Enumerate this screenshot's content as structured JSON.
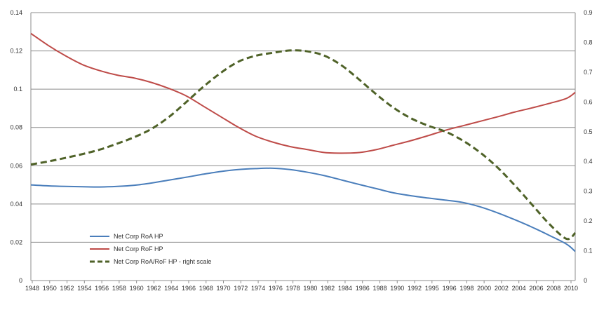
{
  "chart_data": {
    "type": "line",
    "title": "",
    "xlabel": "",
    "ylabel": "",
    "y2label": "",
    "grid": true,
    "legend_position": "bottom-left, inside plot",
    "xlim": [
      1948,
      2011
    ],
    "ylim": [
      0,
      0.14
    ],
    "y2lim": [
      0,
      0.9
    ],
    "x_ticks": [
      "1948",
      "1950",
      "1952",
      "1954",
      "1956",
      "1958",
      "1960",
      "1962",
      "1964",
      "1966",
      "1968",
      "1970",
      "1972",
      "1974",
      "1976",
      "1978",
      "1980",
      "1982",
      "1984",
      "1986",
      "1988",
      "1990",
      "1992",
      "1995",
      "1996",
      "1998",
      "2000",
      "2002",
      "2004",
      "2006",
      "2008",
      "2010"
    ],
    "y_ticks_left": [
      "0",
      "0.02",
      "0.04",
      "0.06",
      "0.08",
      "0.1",
      "0.12",
      "0.14"
    ],
    "y_ticks_right": [
      "0",
      "0.1",
      "0.2",
      "0.3",
      "0.4",
      "0.5",
      "0.6",
      "0.7",
      "0.8",
      "0.9"
    ],
    "series": [
      {
        "name": "Net Corp RoA HP",
        "axis": "left",
        "color": "#4a7ebb",
        "style": "solid",
        "points": [
          [
            1948,
            0.05
          ],
          [
            1950,
            0.0495
          ],
          [
            1952,
            0.0492
          ],
          [
            1954,
            0.049
          ],
          [
            1956,
            0.0489
          ],
          [
            1958,
            0.0492
          ],
          [
            1960,
            0.0498
          ],
          [
            1962,
            0.051
          ],
          [
            1964,
            0.0525
          ],
          [
            1966,
            0.054
          ],
          [
            1968,
            0.0556
          ],
          [
            1970,
            0.057
          ],
          [
            1972,
            0.058
          ],
          [
            1974,
            0.0585
          ],
          [
            1976,
            0.0587
          ],
          [
            1978,
            0.058
          ],
          [
            1980,
            0.0566
          ],
          [
            1982,
            0.0548
          ],
          [
            1984,
            0.0525
          ],
          [
            1986,
            0.0502
          ],
          [
            1988,
            0.048
          ],
          [
            1990,
            0.0458
          ],
          [
            1992,
            0.0443
          ],
          [
            1994,
            0.0431
          ],
          [
            1996,
            0.042
          ],
          [
            1998,
            0.0408
          ],
          [
            2000,
            0.0385
          ],
          [
            2002,
            0.0354
          ],
          [
            2004,
            0.0318
          ],
          [
            2006,
            0.0279
          ],
          [
            2008,
            0.0236
          ],
          [
            2010,
            0.019
          ],
          [
            2011,
            0.0152
          ]
        ]
      },
      {
        "name": "Net Corp RoF HP",
        "axis": "right",
        "color": "#be4b48",
        "style": "solid",
        "points": [
          [
            1948,
            0.83
          ],
          [
            1950,
            0.79
          ],
          [
            1952,
            0.755
          ],
          [
            1954,
            0.725
          ],
          [
            1956,
            0.705
          ],
          [
            1958,
            0.69
          ],
          [
            1960,
            0.68
          ],
          [
            1962,
            0.665
          ],
          [
            1964,
            0.645
          ],
          [
            1966,
            0.62
          ],
          [
            1968,
            0.585
          ],
          [
            1970,
            0.55
          ],
          [
            1972,
            0.515
          ],
          [
            1974,
            0.485
          ],
          [
            1976,
            0.465
          ],
          [
            1978,
            0.45
          ],
          [
            1980,
            0.44
          ],
          [
            1982,
            0.43
          ],
          [
            1984,
            0.428
          ],
          [
            1986,
            0.43
          ],
          [
            1988,
            0.44
          ],
          [
            1990,
            0.455
          ],
          [
            1992,
            0.47
          ],
          [
            1994,
            0.487
          ],
          [
            1996,
            0.505
          ],
          [
            1998,
            0.52
          ],
          [
            2000,
            0.535
          ],
          [
            2002,
            0.55
          ],
          [
            2004,
            0.566
          ],
          [
            2006,
            0.58
          ],
          [
            2008,
            0.595
          ],
          [
            2010,
            0.612
          ],
          [
            2011,
            0.632
          ]
        ]
      },
      {
        "name": "Net Corp RoA/RoF HP - right scale",
        "axis": "right",
        "color": "#4f6228",
        "style": "dashed",
        "points": [
          [
            1948,
            0.39
          ],
          [
            1950,
            0.4
          ],
          [
            1952,
            0.412
          ],
          [
            1954,
            0.425
          ],
          [
            1956,
            0.44
          ],
          [
            1958,
            0.46
          ],
          [
            1960,
            0.482
          ],
          [
            1962,
            0.51
          ],
          [
            1964,
            0.55
          ],
          [
            1966,
            0.6
          ],
          [
            1968,
            0.652
          ],
          [
            1970,
            0.698
          ],
          [
            1972,
            0.735
          ],
          [
            1974,
            0.755
          ],
          [
            1976,
            0.765
          ],
          [
            1978,
            0.773
          ],
          [
            1980,
            0.77
          ],
          [
            1982,
            0.755
          ],
          [
            1984,
            0.722
          ],
          [
            1986,
            0.675
          ],
          [
            1988,
            0.625
          ],
          [
            1990,
            0.58
          ],
          [
            1992,
            0.545
          ],
          [
            1994,
            0.52
          ],
          [
            1996,
            0.5
          ],
          [
            1998,
            0.47
          ],
          [
            2000,
            0.43
          ],
          [
            2002,
            0.38
          ],
          [
            2004,
            0.32
          ],
          [
            2006,
            0.255
          ],
          [
            2008,
            0.19
          ],
          [
            2010,
            0.14
          ],
          [
            2011,
            0.16
          ]
        ]
      }
    ]
  }
}
